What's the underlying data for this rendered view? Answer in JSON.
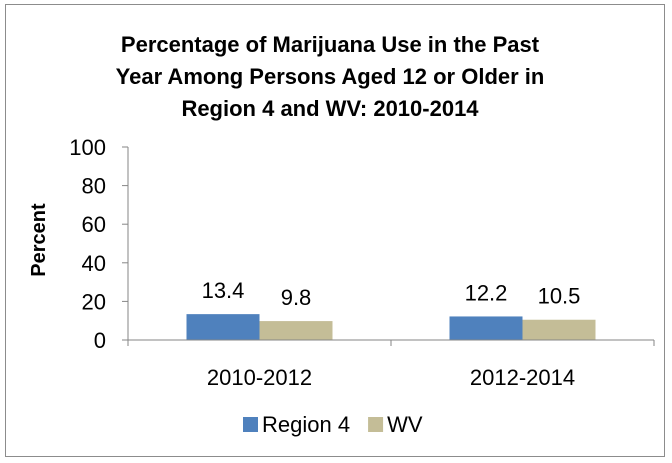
{
  "chart_data": {
    "type": "bar",
    "title_lines": [
      "Percentage of Marijuana Use in the Past",
      "Year Among Persons Aged 12 or Older in",
      "Region 4 and WV: 2010-2014"
    ],
    "xlabel": "",
    "ylabel": "Percent",
    "ylim": [
      0,
      100
    ],
    "yticks": [
      "0",
      "20",
      "40",
      "60",
      "80",
      "100"
    ],
    "categories": [
      "2010-2012",
      "2012-2014"
    ],
    "series": [
      {
        "name": "Region 4",
        "color": "#4f81bd",
        "values": [
          13.4,
          12.2
        ],
        "labels": [
          "13.4",
          "12.2"
        ]
      },
      {
        "name": "WV",
        "color": "#c4bd97",
        "values": [
          9.8,
          10.5
        ],
        "labels": [
          "9.8",
          "10.5"
        ]
      }
    ],
    "legend_position": "bottom",
    "grid": false
  }
}
